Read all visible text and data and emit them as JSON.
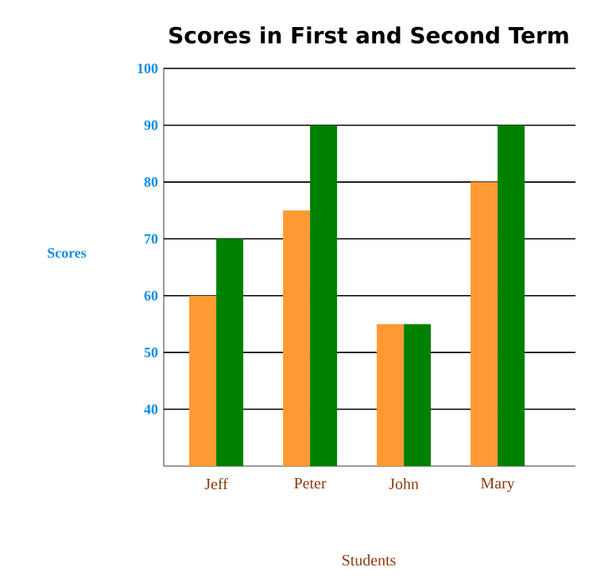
{
  "chart_data": {
    "type": "bar",
    "title": "Scores in First and Second Term",
    "xlabel": "Students",
    "ylabel": "Scores",
    "categories": [
      "Jeff",
      "Peter",
      "John",
      "Mary"
    ],
    "series": [
      {
        "color": "#ff9933",
        "values": [
          60,
          75,
          55,
          80
        ]
      },
      {
        "color": "#008000",
        "values": [
          70,
          90,
          55,
          90
        ]
      }
    ],
    "ylim": [
      30,
      100
    ],
    "yticks": [
      40,
      50,
      60,
      70,
      80,
      90,
      100
    ],
    "grid": "y"
  }
}
